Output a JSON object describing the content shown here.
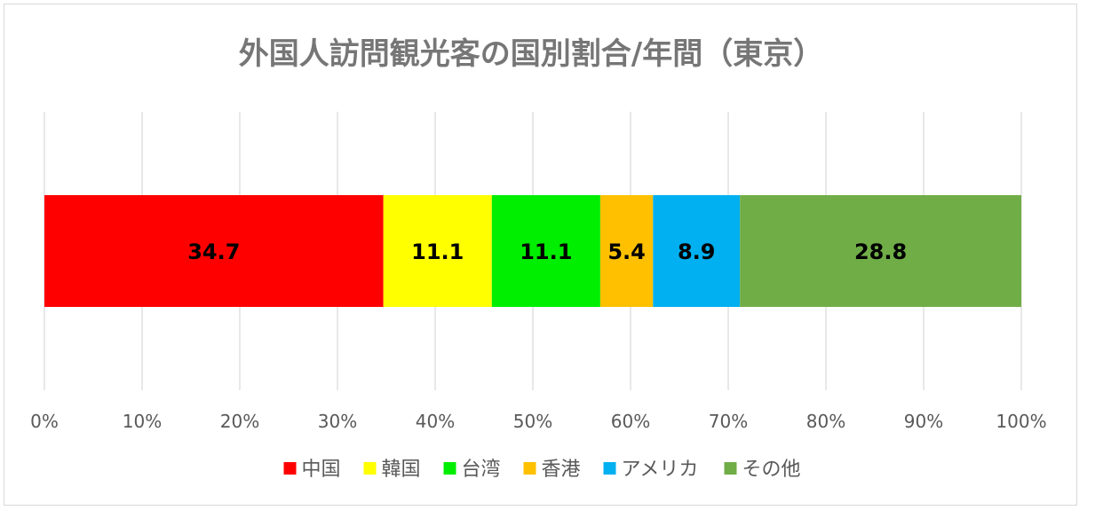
{
  "chart_data": {
    "type": "bar",
    "orientation": "horizontal",
    "stacked": "percent",
    "title": "外国人訪問観光客の国別割合/年間（東京）",
    "xlabel": "",
    "ylabel": "",
    "xlim": [
      0,
      100
    ],
    "grid": true,
    "legend_position": "bottom",
    "tick_labels": [
      "0%",
      "10%",
      "20%",
      "30%",
      "40%",
      "50%",
      "60%",
      "70%",
      "80%",
      "90%",
      "100%"
    ],
    "series": [
      {
        "name": "中国",
        "value": 34.7,
        "label": "34.7",
        "color": "#FF0000"
      },
      {
        "name": "韓国",
        "value": 11.1,
        "label": "11.1",
        "color": "#FFFF00"
      },
      {
        "name": "台湾",
        "value": 11.1,
        "label": "11.1",
        "color": "#00EE00"
      },
      {
        "name": "香港",
        "value": 5.4,
        "label": "5.4",
        "color": "#FFC000"
      },
      {
        "name": "アメリカ",
        "value": 8.9,
        "label": "8.9",
        "color": "#00B0F0"
      },
      {
        "name": "その他",
        "value": 28.8,
        "label": "28.8",
        "color": "#70AD47"
      }
    ]
  }
}
